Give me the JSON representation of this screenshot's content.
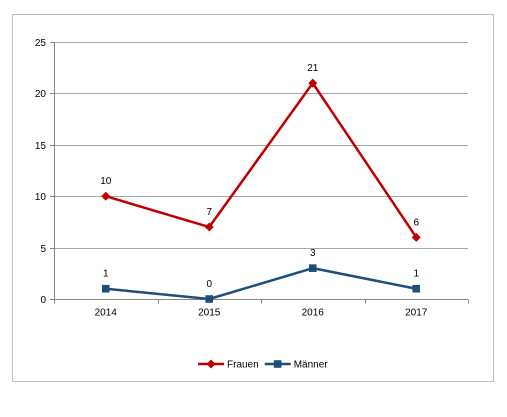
{
  "chart_data": {
    "type": "line",
    "categories": [
      "2014",
      "2015",
      "2016",
      "2017"
    ],
    "yticks": [
      "0",
      "5",
      "10",
      "15",
      "20",
      "25"
    ],
    "ylim": [
      0,
      25
    ],
    "grid": true,
    "legend_position": "bottom",
    "series": [
      {
        "name": "Frauen",
        "values": [
          10,
          7,
          21,
          6
        ],
        "labels": [
          "10",
          "7",
          "21",
          "6"
        ],
        "color": "#c00000",
        "marker": "diamond"
      },
      {
        "name": "Männer",
        "values": [
          1,
          0,
          3,
          1
        ],
        "labels": [
          "1",
          "0",
          "3",
          "1"
        ],
        "color": "#1f4e79",
        "marker": "square"
      }
    ]
  }
}
